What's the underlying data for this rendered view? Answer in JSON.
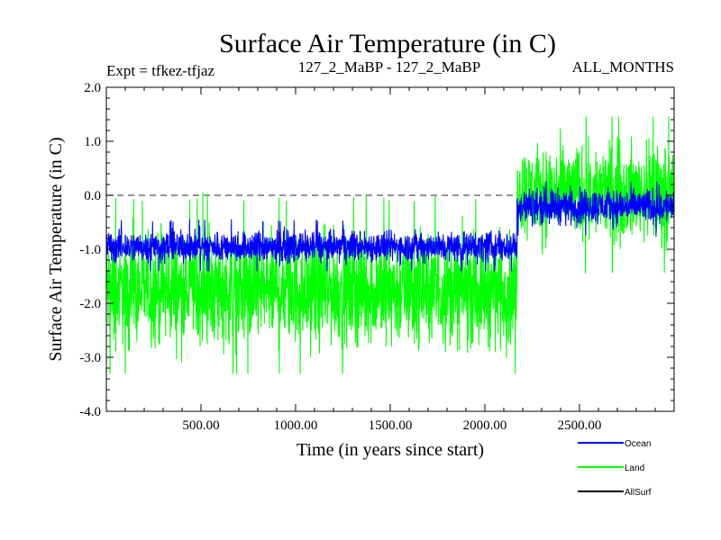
{
  "chart_data": {
    "type": "line",
    "title": "Surface Air Temperature (in C)",
    "subtitle_left": "Expt = tfkez-tfjaz",
    "subtitle_center": "127_2_MaBP - 127_2_MaBP",
    "subtitle_right": "ALL_MONTHS",
    "xlabel": "Time (in years since start)",
    "ylabel": "Surface Air Temperature (in C)",
    "xlim": [
      0,
      3000
    ],
    "ylim": [
      -4.0,
      2.0
    ],
    "x_ticks": [
      500,
      1000,
      1500,
      2000,
      2500
    ],
    "x_tick_labels": [
      "500.00",
      "1000.00",
      "1500.00",
      "2000.00",
      "2500.00"
    ],
    "y_ticks": [
      2.0,
      1.0,
      0.0,
      -1.0,
      -2.0,
      -3.0,
      -4.0
    ],
    "y_tick_labels": [
      "2.0",
      "1.0",
      "0.0",
      "-1.0",
      "-2.0",
      "-3.0",
      "-4.0"
    ],
    "reference_line": {
      "y": 0.0,
      "style": "dashed"
    },
    "legend_position": "bottom-right",
    "series": [
      {
        "name": "Land",
        "color": "#00ff00",
        "segments": [
          {
            "x": [
              0,
              2170
            ],
            "mean": -1.75,
            "range": [
              -3.3,
              0.3
            ]
          },
          {
            "x": [
              2170,
              3000
            ],
            "mean": 0.05,
            "range": [
              -1.6,
              1.45
            ]
          }
        ]
      },
      {
        "name": "Ocean",
        "color": "#0000ff",
        "segments": [
          {
            "x": [
              0,
              2170
            ],
            "mean": -0.95,
            "range": [
              -1.4,
              -0.4
            ]
          },
          {
            "x": [
              2170,
              3000
            ],
            "mean": -0.2,
            "range": [
              -0.9,
              0.25
            ]
          }
        ]
      },
      {
        "name": "AllSurf",
        "color": "#000000",
        "segments": []
      }
    ]
  }
}
